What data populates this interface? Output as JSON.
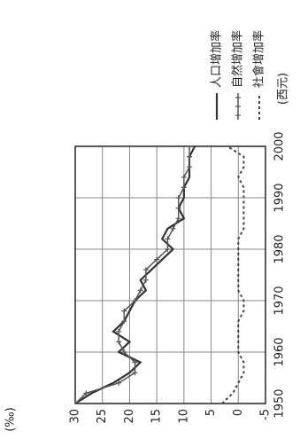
{
  "chart_data": {
    "type": "line",
    "y_label": "(‰)",
    "x_label": "(西元)",
    "x": [
      1950,
      1952,
      1954,
      1956,
      1958,
      1960,
      1962,
      1964,
      1966,
      1968,
      1970,
      1972,
      1974,
      1976,
      1978,
      1980,
      1982,
      1984,
      1986,
      1988,
      1990,
      1992,
      1994,
      1996,
      1998,
      2000
    ],
    "series": [
      {
        "name": "人口增加率",
        "color": "#333333",
        "values": [
          30,
          27,
          23,
          20,
          18,
          22,
          20,
          23,
          21,
          20,
          19,
          17,
          18,
          16,
          14,
          12,
          14,
          13,
          10,
          11,
          10,
          10,
          9,
          9,
          9,
          8
        ]
      },
      {
        "name": "自然增加率",
        "color": "#555555",
        "values": [
          30,
          28,
          22,
          19,
          19,
          21,
          22,
          22,
          21,
          21,
          19,
          18,
          17,
          17,
          15,
          13,
          13,
          12,
          11,
          11,
          11,
          10,
          10,
          9,
          9,
          9
        ]
      },
      {
        "name": "社會增加率",
        "color": "#444444",
        "values": [
          3,
          1,
          0,
          -1,
          -1,
          0,
          0,
          0,
          0,
          -1,
          -1,
          0,
          0,
          0,
          0,
          0,
          0,
          -1,
          -1,
          -1,
          -1,
          -1,
          0,
          -1,
          -1,
          2
        ]
      }
    ],
    "xlim": [
      1950,
      2000
    ],
    "xticks": [
      1950,
      1960,
      1970,
      1980,
      1990,
      2000
    ],
    "ylim": [
      -5,
      30
    ],
    "yticks": [
      -5,
      0,
      5,
      10,
      15,
      20,
      25,
      30
    ],
    "grid": true
  }
}
